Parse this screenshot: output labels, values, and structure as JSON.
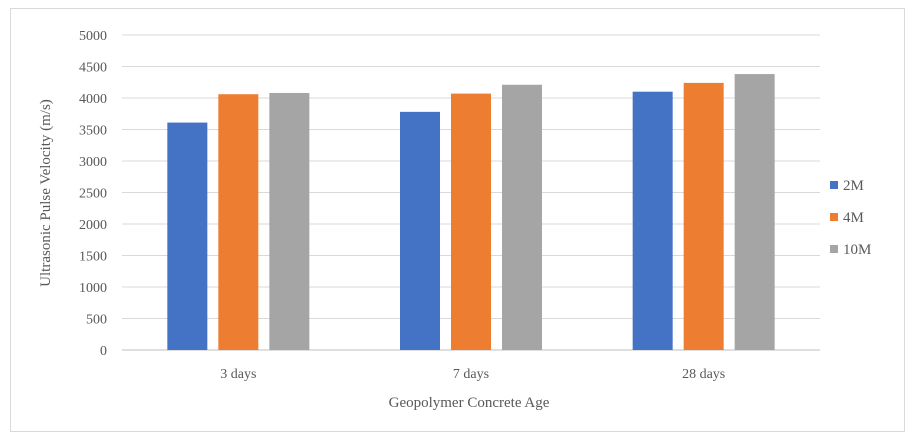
{
  "chart_data": {
    "type": "bar",
    "title": "",
    "xlabel": "Geopolymer Concrete Age",
    "ylabel": "Ultrasonic Pulse Velocity (m/s)",
    "categories": [
      "3 days",
      "7 days",
      "28 days"
    ],
    "series": [
      {
        "name": "2M",
        "color": "#4472c4",
        "values": [
          3610,
          3780,
          4100
        ]
      },
      {
        "name": "4M",
        "color": "#ed7d31",
        "values": [
          4060,
          4070,
          4240
        ]
      },
      {
        "name": "10M",
        "color": "#a5a5a5",
        "values": [
          4080,
          4210,
          4380
        ]
      }
    ],
    "ylim": [
      0,
      5000
    ],
    "yticks": [
      0,
      500,
      1000,
      1500,
      2000,
      2500,
      3000,
      3500,
      4000,
      4500,
      5000
    ],
    "grid": true,
    "legend_position": "right"
  }
}
